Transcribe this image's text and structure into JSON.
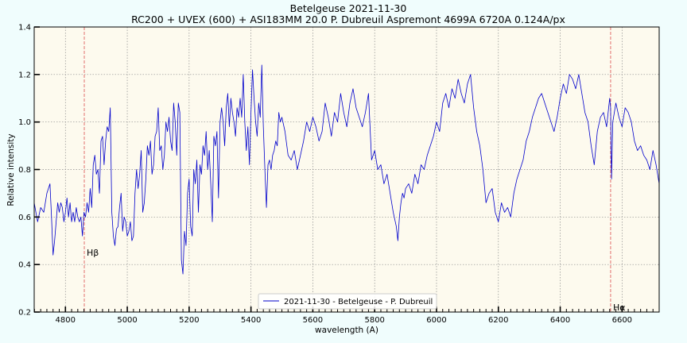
{
  "chart_data": {
    "type": "line",
    "title": "Betelgeuse 2021-11-30",
    "subtitle": "RC200 + UVEX (600) + ASI183MM 20.0 P. Dubreuil Aspremont 4699A 6720A 0.124A/px",
    "xlabel": "wavelength (A)",
    "ylabel": "Relative intensity",
    "xlim": [
      4699,
      6720
    ],
    "ylim": [
      0.2,
      1.4
    ],
    "x_ticks": [
      4800,
      5000,
      5200,
      5400,
      5600,
      5800,
      6000,
      6200,
      6400,
      6600
    ],
    "y_ticks": [
      0.2,
      0.4,
      0.6,
      0.8,
      1.0,
      1.2,
      1.4
    ],
    "grid": true,
    "legend_position": "bottom-center",
    "background_color": "#fdfaee",
    "page_color": "#f0fdfd",
    "line_color": "#0000cc",
    "reference_line_color": "#e06060",
    "reference_lines": [
      {
        "label": "Hβ",
        "x": 4861
      },
      {
        "label": "Hα",
        "x": 6563
      }
    ],
    "series": [
      {
        "name": "2021-11-30 - Betelgeuse - P. Dubreuil",
        "x": [
          4699,
          4710,
          4720,
          4730,
          4740,
          4750,
          4755,
          4760,
          4765,
          4770,
          4775,
          4780,
          4785,
          4790,
          4795,
          4800,
          4805,
          4810,
          4815,
          4820,
          4825,
          4830,
          4835,
          4840,
          4845,
          4850,
          4855,
          4860,
          4865,
          4870,
          4875,
          4880,
          4885,
          4890,
          4895,
          4900,
          4905,
          4910,
          4915,
          4920,
          4925,
          4930,
          4935,
          4940,
          4945,
          4950,
          4955,
          4960,
          4965,
          4970,
          4975,
          4980,
          4985,
          4990,
          4995,
          5000,
          5005,
          5010,
          5015,
          5020,
          5025,
          5030,
          5035,
          5040,
          5045,
          5050,
          5055,
          5060,
          5065,
          5070,
          5075,
          5080,
          5085,
          5090,
          5095,
          5100,
          5105,
          5110,
          5115,
          5120,
          5125,
          5130,
          5135,
          5140,
          5145,
          5150,
          5155,
          5160,
          5165,
          5170,
          5175,
          5180,
          5185,
          5190,
          5195,
          5200,
          5205,
          5210,
          5215,
          5220,
          5225,
          5230,
          5235,
          5240,
          5245,
          5250,
          5255,
          5260,
          5265,
          5270,
          5275,
          5280,
          5285,
          5290,
          5295,
          5300,
          5305,
          5310,
          5315,
          5320,
          5325,
          5330,
          5335,
          5340,
          5345,
          5350,
          5355,
          5360,
          5365,
          5370,
          5375,
          5380,
          5385,
          5390,
          5395,
          5400,
          5405,
          5410,
          5415,
          5420,
          5425,
          5430,
          5435,
          5440,
          5445,
          5450,
          5455,
          5460,
          5465,
          5470,
          5475,
          5480,
          5485,
          5490,
          5495,
          5500,
          5510,
          5520,
          5530,
          5540,
          5550,
          5560,
          5570,
          5580,
          5590,
          5600,
          5610,
          5620,
          5630,
          5640,
          5650,
          5660,
          5670,
          5680,
          5690,
          5700,
          5710,
          5720,
          5730,
          5740,
          5750,
          5760,
          5770,
          5780,
          5790,
          5800,
          5810,
          5820,
          5830,
          5840,
          5850,
          5860,
          5870,
          5875,
          5880,
          5885,
          5890,
          5895,
          5900,
          5910,
          5920,
          5930,
          5940,
          5950,
          5960,
          5970,
          5980,
          5990,
          6000,
          6010,
          6020,
          6030,
          6040,
          6050,
          6060,
          6070,
          6080,
          6090,
          6100,
          6110,
          6120,
          6130,
          6140,
          6150,
          6160,
          6170,
          6180,
          6190,
          6200,
          6210,
          6220,
          6230,
          6240,
          6250,
          6260,
          6270,
          6280,
          6290,
          6300,
          6310,
          6320,
          6330,
          6340,
          6350,
          6360,
          6370,
          6380,
          6390,
          6400,
          6410,
          6420,
          6430,
          6440,
          6450,
          6460,
          6470,
          6480,
          6490,
          6500,
          6510,
          6520,
          6530,
          6540,
          6550,
          6560,
          6563,
          6566,
          6570,
          6580,
          6590,
          6600,
          6610,
          6620,
          6630,
          6640,
          6650,
          6660,
          6670,
          6680,
          6690,
          6700,
          6710,
          6720
        ],
        "y": [
          0.66,
          0.58,
          0.64,
          0.62,
          0.7,
          0.74,
          0.6,
          0.44,
          0.5,
          0.58,
          0.66,
          0.62,
          0.66,
          0.64,
          0.58,
          0.62,
          0.68,
          0.6,
          0.66,
          0.58,
          0.62,
          0.58,
          0.64,
          0.6,
          0.58,
          0.6,
          0.52,
          0.62,
          0.6,
          0.66,
          0.62,
          0.72,
          0.64,
          0.82,
          0.86,
          0.78,
          0.8,
          0.7,
          0.92,
          0.94,
          0.82,
          0.92,
          0.98,
          0.96,
          1.06,
          0.62,
          0.52,
          0.48,
          0.55,
          0.56,
          0.64,
          0.7,
          0.54,
          0.6,
          0.58,
          0.52,
          0.54,
          0.58,
          0.5,
          0.52,
          0.7,
          0.8,
          0.72,
          0.78,
          0.88,
          0.62,
          0.66,
          0.76,
          0.9,
          0.86,
          0.92,
          0.78,
          0.82,
          0.94,
          0.96,
          1.06,
          0.88,
          0.9,
          0.8,
          0.86,
          1.0,
          0.96,
          1.02,
          0.92,
          0.88,
          1.08,
          1.0,
          0.86,
          1.08,
          1.04,
          0.42,
          0.36,
          0.54,
          0.48,
          0.7,
          0.76,
          0.56,
          0.52,
          0.8,
          0.74,
          0.84,
          0.62,
          0.82,
          0.78,
          0.9,
          0.86,
          0.96,
          0.8,
          0.88,
          0.74,
          0.58,
          0.94,
          0.9,
          0.96,
          0.68,
          1.0,
          1.06,
          1.0,
          0.9,
          1.06,
          1.12,
          0.98,
          1.1,
          1.04,
          1.0,
          0.94,
          1.06,
          1.02,
          1.1,
          1.02,
          1.2,
          1.0,
          0.88,
          0.98,
          0.82,
          1.04,
          1.22,
          1.1,
          1.0,
          0.94,
          1.08,
          1.02,
          1.24,
          0.98,
          0.8,
          0.64,
          0.82,
          0.84,
          0.8,
          0.86,
          0.88,
          0.92,
          0.9,
          1.04,
          1.0,
          1.02,
          0.96,
          0.86,
          0.84,
          0.88,
          0.8,
          0.86,
          0.92,
          1.0,
          0.96,
          1.02,
          0.98,
          0.92,
          0.96,
          1.08,
          1.02,
          0.94,
          1.04,
          1.0,
          1.12,
          1.04,
          0.98,
          1.08,
          1.14,
          1.06,
          1.02,
          0.98,
          1.04,
          1.12,
          0.84,
          0.88,
          0.8,
          0.82,
          0.74,
          0.78,
          0.7,
          0.62,
          0.56,
          0.5,
          0.6,
          0.66,
          0.7,
          0.68,
          0.72,
          0.74,
          0.7,
          0.78,
          0.74,
          0.82,
          0.8,
          0.86,
          0.9,
          0.94,
          1.0,
          0.96,
          1.08,
          1.12,
          1.06,
          1.14,
          1.1,
          1.18,
          1.12,
          1.08,
          1.16,
          1.2,
          1.06,
          0.96,
          0.9,
          0.8,
          0.66,
          0.7,
          0.72,
          0.62,
          0.58,
          0.66,
          0.62,
          0.64,
          0.6,
          0.7,
          0.76,
          0.8,
          0.84,
          0.92,
          0.96,
          1.02,
          1.06,
          1.1,
          1.12,
          1.08,
          1.04,
          1.0,
          0.96,
          1.02,
          1.1,
          1.16,
          1.12,
          1.2,
          1.18,
          1.14,
          1.2,
          1.12,
          1.04,
          1.0,
          0.9,
          0.82,
          0.96,
          1.02,
          1.04,
          0.98,
          1.1,
          1.06,
          0.76,
          1.0,
          1.08,
          1.02,
          0.98,
          1.06,
          1.04,
          1.0,
          0.92,
          0.88,
          0.9,
          0.86,
          0.84,
          0.8,
          0.88,
          0.82,
          0.74
        ]
      }
    ]
  }
}
